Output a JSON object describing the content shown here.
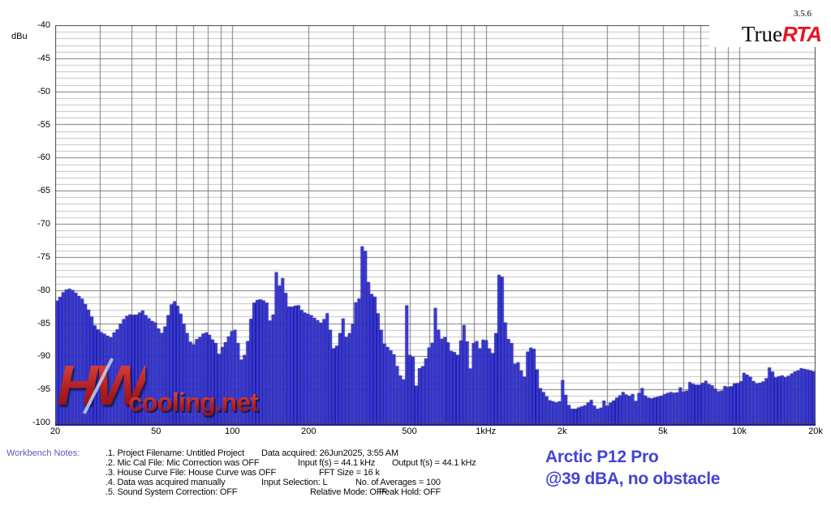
{
  "app": {
    "name": "TrueRTA",
    "version": "3.5.6"
  },
  "logo": {
    "true_part": "True",
    "rta_part": "RTA",
    "rta_color": "#e8141e"
  },
  "annotation": {
    "line1": "Arctic P12 Pro",
    "line2": "@39 dBA, no obstacle",
    "color": "#4343d6"
  },
  "watermark": {
    "hw": "HW",
    "net": "cooling.net"
  },
  "workbench": {
    "label": "Workbench Notes:",
    "rows": [
      {
        "c1": ".1. Project Filename: Untitled Project",
        "c2": "Data acquired: 26Jun2025, 3:55 AM",
        "c3": ""
      },
      {
        "c1": ".2. Mic Cal File: Mic Correction was OFF",
        "c2": "Input f(s) = 44.1 kHz",
        "c3": "Output f(s) = 44.1 kHz"
      },
      {
        "c1": ".3. House Curve File: House Curve was OFF",
        "c2": "FFT Size = 16 k",
        "c3": ""
      },
      {
        "c1": ".4. Data was acquired manually",
        "c2": "Input Selection: L",
        "c3": "No. of Averages = 100"
      },
      {
        "c1": ".5. Sound System Correction: OFF",
        "c2": "Relative Mode: OFF",
        "c3": "Peak Hold: OFF"
      }
    ]
  },
  "chart_data": {
    "type": "bar",
    "title": "",
    "ylabel": "dBu",
    "xlabel": "",
    "x_scale": "log",
    "xlim_hz": [
      20,
      20000
    ],
    "ylim": [
      -100,
      -40
    ],
    "y_major_step": 5,
    "y_minor_step": 1,
    "bars_per_octave": 24,
    "y_tick_labels": [
      "-40",
      "-45",
      "-50",
      "-55",
      "-60",
      "-65",
      "-70",
      "-75",
      "-80",
      "-85",
      "-90",
      "-95",
      "-100"
    ],
    "x_ticks": [
      {
        "hz": 20,
        "label": "20"
      },
      {
        "hz": 50,
        "label": "50"
      },
      {
        "hz": 100,
        "label": "100"
      },
      {
        "hz": 200,
        "label": "200"
      },
      {
        "hz": 500,
        "label": "500"
      },
      {
        "hz": 1000,
        "label": "1kHz"
      },
      {
        "hz": 2000,
        "label": "2k"
      },
      {
        "hz": 5000,
        "label": "5k"
      },
      {
        "hz": 10000,
        "label": "10k"
      },
      {
        "hz": 20000,
        "label": "20k"
      }
    ],
    "colors": {
      "bar_fill": "#3b3be8",
      "bar_edge": "#1e1e96",
      "grid_minor": "#c3c3c3",
      "grid_major": "#7a7a7a",
      "frame": "#4a4a4a"
    },
    "envelope_db_vs_hz": [
      [
        19.5,
        -82.6
      ],
      [
        20.5,
        -81.6
      ],
      [
        21.2,
        -80.6
      ],
      [
        21.9,
        -80.0
      ],
      [
        22.5,
        -79.8
      ],
      [
        23.2,
        -80.0
      ],
      [
        24.0,
        -80.4
      ],
      [
        24.8,
        -80.9
      ],
      [
        25.5,
        -81.3
      ],
      [
        26.4,
        -82.2
      ],
      [
        27.3,
        -83.2
      ],
      [
        28.1,
        -84.3
      ],
      [
        28.8,
        -85.5
      ],
      [
        29.8,
        -86.1
      ],
      [
        31.0,
        -86.6
      ],
      [
        32.2,
        -86.9
      ],
      [
        33.4,
        -87.2
      ],
      [
        34.6,
        -86.4
      ],
      [
        36.0,
        -85.2
      ],
      [
        37.2,
        -84.4
      ],
      [
        38.6,
        -83.9
      ],
      [
        40.0,
        -83.7
      ],
      [
        41.5,
        -83.8
      ],
      [
        43.0,
        -83.4
      ],
      [
        44.0,
        -83.1
      ],
      [
        45.6,
        -83.8
      ],
      [
        47.3,
        -84.4
      ],
      [
        49.1,
        -84.9
      ],
      [
        51.0,
        -85.8
      ],
      [
        53.0,
        -86.6
      ],
      [
        55.0,
        -84.8
      ],
      [
        57.0,
        -82.3
      ],
      [
        59.0,
        -81.7
      ],
      [
        61.2,
        -82.5
      ],
      [
        63.5,
        -84.2
      ],
      [
        66.0,
        -86.5
      ],
      [
        68.2,
        -87.8
      ],
      [
        70.8,
        -88.3
      ],
      [
        73.4,
        -87.4
      ],
      [
        76.3,
        -86.6
      ],
      [
        79.2,
        -86.4
      ],
      [
        82.0,
        -86.9
      ],
      [
        85.2,
        -88.0
      ],
      [
        88.4,
        -89.7
      ],
      [
        91.8,
        -88.6
      ],
      [
        95.3,
        -87.4
      ],
      [
        99.0,
        -86.3
      ],
      [
        101.0,
        -86.0
      ],
      [
        104.0,
        -88.0
      ],
      [
        107.0,
        -90.5
      ],
      [
        110.0,
        -92.4
      ],
      [
        113.0,
        -89.8
      ],
      [
        117.0,
        -85.5
      ],
      [
        121.0,
        -82.0
      ],
      [
        125.0,
        -81.5
      ],
      [
        129.0,
        -81.4
      ],
      [
        133.5,
        -81.6
      ],
      [
        136.5,
        -81.9
      ],
      [
        140.0,
        -84.6
      ],
      [
        144.0,
        -85.4
      ],
      [
        148.0,
        -77.3
      ],
      [
        151.0,
        -77.9
      ],
      [
        155.5,
        -80.5
      ],
      [
        160.0,
        -78.2
      ],
      [
        165.0,
        -82.5
      ],
      [
        170.0,
        -82.6
      ],
      [
        175.0,
        -82.4
      ],
      [
        180.5,
        -82.3
      ],
      [
        186.0,
        -83.0
      ],
      [
        191.5,
        -83.4
      ],
      [
        197.0,
        -83.6
      ],
      [
        203.0,
        -83.8
      ],
      [
        210.0,
        -84.2
      ],
      [
        218.0,
        -84.6
      ],
      [
        226.0,
        -85.1
      ],
      [
        235.0,
        -83.5
      ],
      [
        242.0,
        -86.0
      ],
      [
        248.0,
        -88.8
      ],
      [
        255.0,
        -89.2
      ],
      [
        266.0,
        -86.5
      ],
      [
        273.0,
        -84.3
      ],
      [
        280.0,
        -87.2
      ],
      [
        288.0,
        -86.6
      ],
      [
        296.0,
        -86.2
      ],
      [
        305.0,
        -82.0
      ],
      [
        316.0,
        -81.3
      ],
      [
        321.0,
        -79.5
      ],
      [
        326.0,
        -73.4
      ],
      [
        333.0,
        -74.1
      ],
      [
        340.0,
        -78.8
      ],
      [
        350.0,
        -80.6
      ],
      [
        360.0,
        -81.0
      ],
      [
        371.0,
        -83.5
      ],
      [
        382.0,
        -86.0
      ],
      [
        392.0,
        -87.8
      ],
      [
        408.0,
        -88.6
      ],
      [
        424.0,
        -89.2
      ],
      [
        436.0,
        -89.8
      ],
      [
        452.0,
        -92.2
      ],
      [
        467.0,
        -93.5
      ],
      [
        478.0,
        -93.7
      ],
      [
        486.0,
        -82.3
      ],
      [
        497.0,
        -89.8
      ],
      [
        515.0,
        -90.1
      ],
      [
        534.0,
        -95.0
      ],
      [
        550.0,
        -91.8
      ],
      [
        571.0,
        -91.5
      ],
      [
        592.0,
        -88.8
      ],
      [
        613.0,
        -88.3
      ],
      [
        637.0,
        -82.7
      ],
      [
        658.0,
        -87.6
      ],
      [
        682.0,
        -87.1
      ],
      [
        705.0,
        -87.9
      ],
      [
        731.0,
        -89.2
      ],
      [
        757.0,
        -89.4
      ],
      [
        784.0,
        -90.0
      ],
      [
        810.0,
        -85.3
      ],
      [
        845.0,
        -87.8
      ],
      [
        872.0,
        -92.3
      ],
      [
        898.0,
        -88.0
      ],
      [
        926.0,
        -87.7
      ],
      [
        952.0,
        -89.0
      ],
      [
        980.0,
        -87.5
      ],
      [
        1011.0,
        -87.6
      ],
      [
        1043.0,
        -89.3
      ],
      [
        1072.0,
        -89.6
      ],
      [
        1100.0,
        -86.5
      ],
      [
        1122.0,
        -77.7
      ],
      [
        1145.0,
        -78.0
      ],
      [
        1178.0,
        -84.9
      ],
      [
        1214.0,
        -87.4
      ],
      [
        1250.0,
        -88.0
      ],
      [
        1277.0,
        -91.0
      ],
      [
        1315.0,
        -91.2
      ],
      [
        1355.0,
        -90.9
      ],
      [
        1395.0,
        -92.9
      ],
      [
        1437.0,
        -93.2
      ],
      [
        1479.0,
        -89.3
      ],
      [
        1523.0,
        -88.7
      ],
      [
        1569.0,
        -89.0
      ],
      [
        1616.0,
        -94.4
      ],
      [
        1665.0,
        -95.2
      ],
      [
        1714.0,
        -95.6
      ],
      [
        1764.0,
        -96.5
      ],
      [
        1817.0,
        -96.8
      ],
      [
        1884.0,
        -97.0
      ],
      [
        1953.0,
        -96.8
      ],
      [
        2012.0,
        -93.6
      ],
      [
        2073.0,
        -96.0
      ],
      [
        2135.0,
        -97.5
      ],
      [
        2213.0,
        -98.1
      ],
      [
        2293.0,
        -97.8
      ],
      [
        2378.0,
        -97.6
      ],
      [
        2466.0,
        -97.4
      ],
      [
        2594.0,
        -96.6
      ],
      [
        2709.0,
        -97.7
      ],
      [
        2824.0,
        -98.2
      ],
      [
        2890.0,
        -96.7
      ],
      [
        3000.0,
        -97.5
      ],
      [
        3128.0,
        -97.0
      ],
      [
        3266.0,
        -96.3
      ],
      [
        3413.0,
        -95.9
      ],
      [
        3520.0,
        -95.4
      ],
      [
        3640.0,
        -96.1
      ],
      [
        3776.0,
        -95.7
      ],
      [
        3914.0,
        -96.8
      ],
      [
        4088.0,
        -94.8
      ],
      [
        4270.0,
        -96.0
      ],
      [
        4459.0,
        -96.4
      ],
      [
        4657.0,
        -96.2
      ],
      [
        4896.0,
        -96.0
      ],
      [
        5148.0,
        -95.6
      ],
      [
        5377.0,
        -95.4
      ],
      [
        5655.0,
        -95.6
      ],
      [
        5860.0,
        -94.7
      ],
      [
        6130.0,
        -95.7
      ],
      [
        6393.0,
        -93.9
      ],
      [
        6676.0,
        -94.3
      ],
      [
        7023.0,
        -94.3
      ],
      [
        7332.0,
        -93.7
      ],
      [
        7715.0,
        -94.4
      ],
      [
        8113.0,
        -95.0
      ],
      [
        8420.0,
        -95.5
      ],
      [
        8775.0,
        -94.5
      ],
      [
        9161.0,
        -94.7
      ],
      [
        9625.0,
        -94.1
      ],
      [
        10074.0,
        -94.0
      ],
      [
        10517.0,
        -92.5
      ],
      [
        11000.0,
        -93.1
      ],
      [
        11593.0,
        -94.1
      ],
      [
        12155.0,
        -94.0
      ],
      [
        12695.0,
        -93.6
      ],
      [
        13264.0,
        -91.7
      ],
      [
        13944.0,
        -93.2
      ],
      [
        14565.0,
        -92.9
      ],
      [
        15310.0,
        -93.2
      ],
      [
        16100.0,
        -92.6
      ],
      [
        16806.0,
        -92.3
      ],
      [
        17561.0,
        -91.8
      ],
      [
        18500.0,
        -92.0
      ],
      [
        19800.0,
        -92.3
      ]
    ]
  }
}
